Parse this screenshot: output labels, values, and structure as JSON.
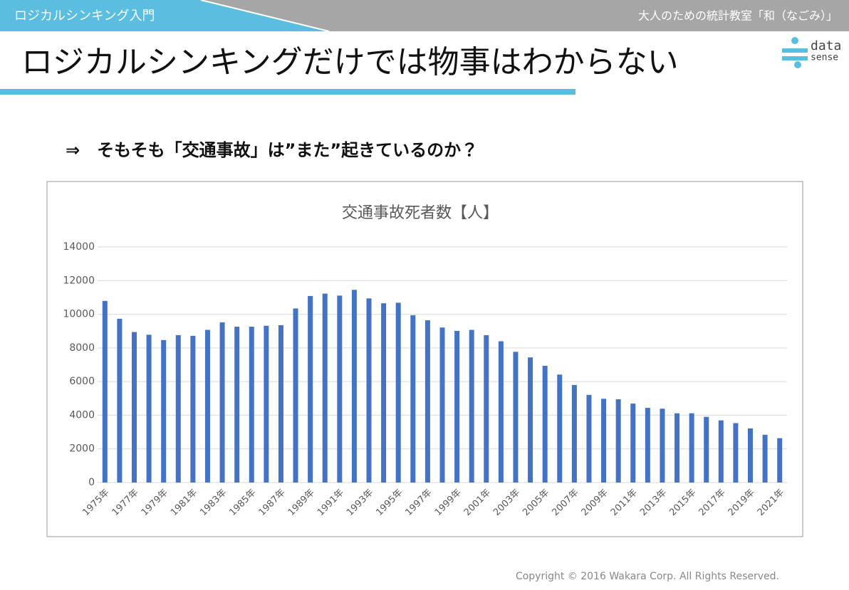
{
  "header": {
    "course": "ロジカルシンキング入門",
    "series": "大人のための統計教室「和（なごみ）」"
  },
  "title": "ロジカルシンキングだけでは物事はわからない",
  "logo": {
    "line1": "data",
    "line2": "sense"
  },
  "subtitle": "⇒　そもそも「交通事故」は”また”起きているのか？",
  "chart_data": {
    "type": "bar",
    "title": "交通事故死者数【人】",
    "categories": [
      "1975年",
      null,
      "1977年",
      null,
      "1979年",
      null,
      "1981年",
      null,
      "1983年",
      null,
      "1985年",
      null,
      "1987年",
      null,
      "1989年",
      null,
      "1991年",
      null,
      "1993年",
      null,
      "1995年",
      null,
      "1997年",
      null,
      "1999年",
      null,
      "2001年",
      null,
      "2003年",
      null,
      "2005年",
      null,
      "2007年",
      null,
      "2009年",
      null,
      "2011年",
      null,
      "2013年",
      null,
      "2015年",
      null,
      "2017年",
      null,
      "2019年",
      null,
      "2021年"
    ],
    "values": [
      10792,
      9734,
      8945,
      8783,
      8466,
      8760,
      8719,
      9073,
      9520,
      9262,
      9261,
      9317,
      9347,
      10344,
      11086,
      11227,
      11109,
      11452,
      10942,
      10653,
      10684,
      9943,
      9642,
      9214,
      9012,
      9073,
      8757,
      8396,
      7768,
      7436,
      6937,
      6415,
      5796,
      5209,
      4979,
      4948,
      4691,
      4438,
      4388,
      4113,
      4117,
      3904,
      3694,
      3532,
      3215,
      2839,
      2636
    ],
    "color": "#4472c4",
    "ylim": [
      0,
      14000
    ],
    "yticks": [
      0,
      2000,
      4000,
      6000,
      8000,
      10000,
      12000,
      14000
    ],
    "grid": true
  },
  "footer": {
    "copyright": "Copyright © 2016 Wakara Corp. All Rights Reserved."
  }
}
